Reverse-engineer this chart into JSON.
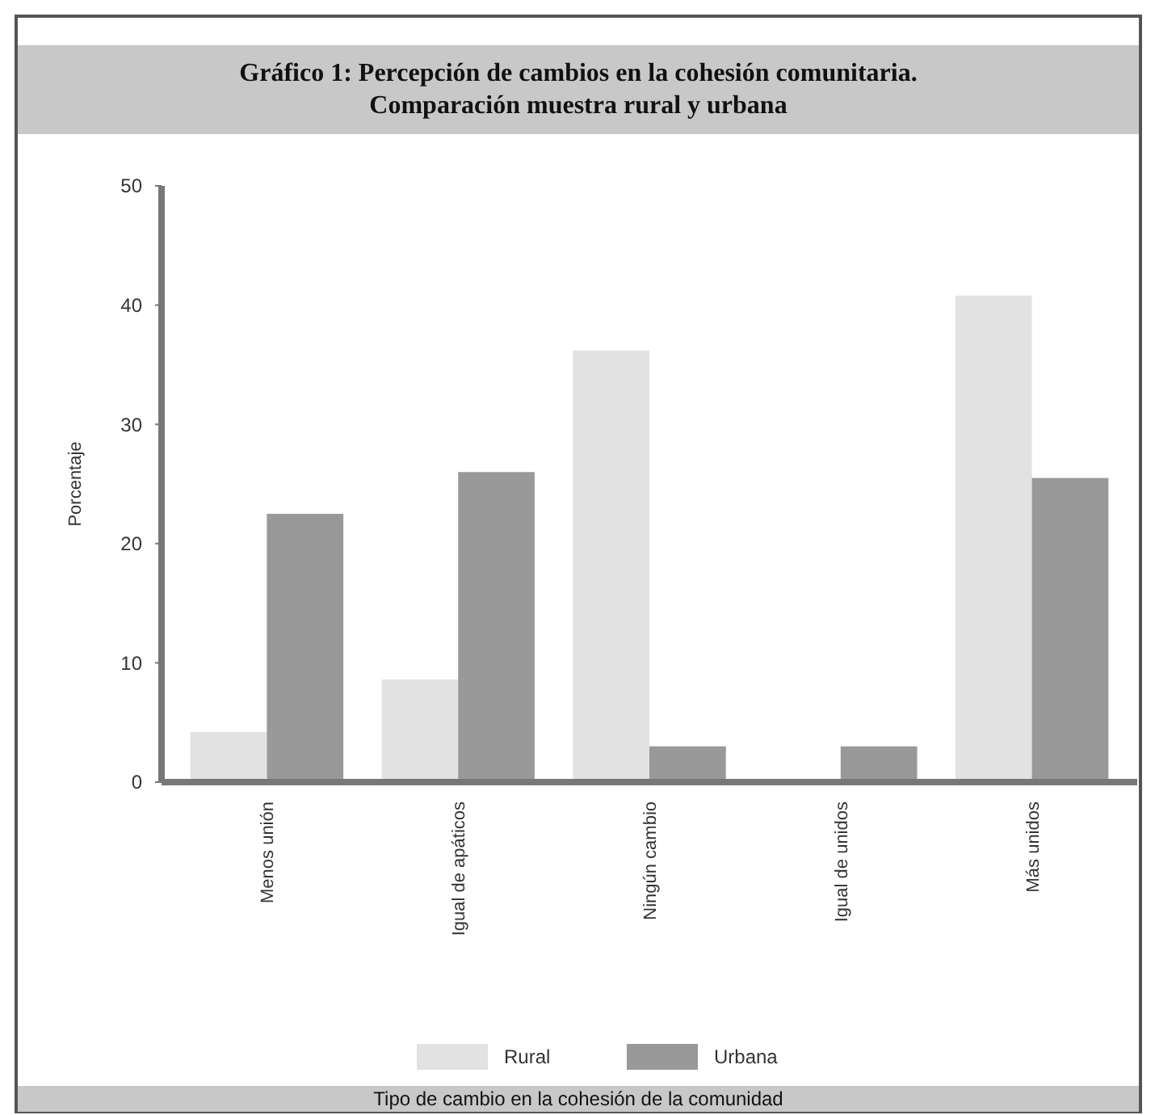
{
  "chart_data": {
    "type": "bar",
    "title": "Gráfico 1: Percepción de cambios en la cohesión comunitaria. Comparación muestra rural y urbana",
    "annotations": [
      "Tipo de cambio en la cohesión de la comunidad"
    ],
    "ylabel": "Porcentaje",
    "categories": [
      "Menos unión",
      "Igual de apáticos",
      "Ningún cambio",
      "Igual de unidos",
      "Más unidos"
    ],
    "series": [
      {
        "name": "Rural",
        "color": "#e2e2e2",
        "values": [
          4.2,
          8.6,
          36.2,
          0,
          40.8
        ]
      },
      {
        "name": "Urbana",
        "color": "#999999",
        "values": [
          22.5,
          26,
          3,
          3,
          25.5
        ]
      }
    ],
    "ylim": [
      0,
      50
    ],
    "yticks": [
      0,
      10,
      20,
      30,
      40,
      50
    ],
    "grid": false,
    "legend": "bottom"
  }
}
